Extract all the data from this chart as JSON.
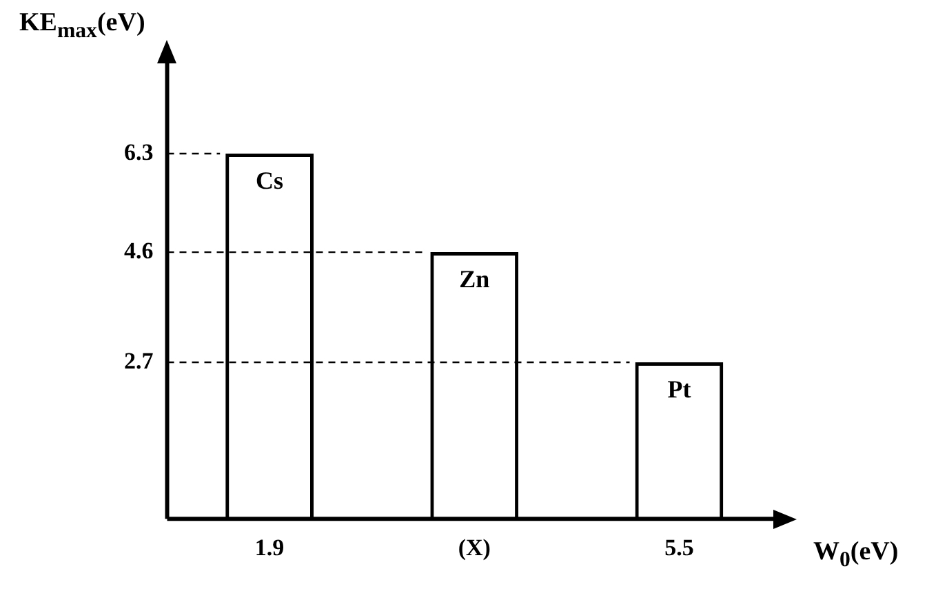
{
  "chart_data": {
    "type": "bar",
    "xlabel": "W$_{0}$(eV)",
    "ylabel": "KE$_{max}$(eV)",
    "categories": [
      "1.9",
      "(X)",
      "5.5"
    ],
    "values": [
      6.3,
      4.6,
      2.7
    ],
    "color": "#000000",
    "ylim": [
      0,
      8
    ],
    "yticks": [
      2.7,
      4.6,
      6.3
    ],
    "grid": false,
    "ref_lines": [
      {
        "axis": "y",
        "value": 6.3,
        "line_style": "dashed"
      },
      {
        "axis": "y",
        "value": 4.6,
        "line_style": "dashed"
      },
      {
        "axis": "y",
        "value": 2.7,
        "line_style": "dashed"
      }
    ],
    "annotations": [
      {
        "text": "Cs",
        "x": "1.9",
        "y": 6.3
      },
      {
        "text": "Zn",
        "x": "(X)",
        "y": 4.6
      },
      {
        "text": "Pt",
        "x": "5.5",
        "y": 2.7
      }
    ]
  }
}
